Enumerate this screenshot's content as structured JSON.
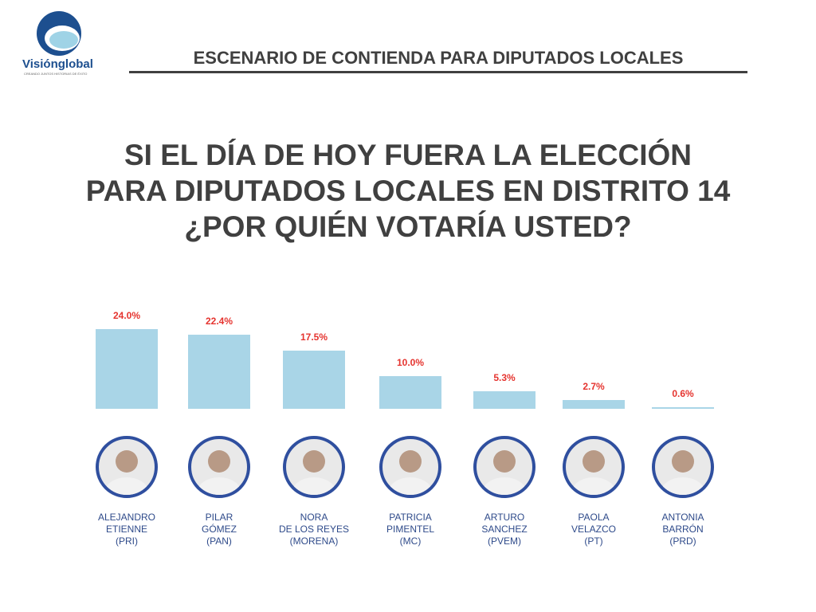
{
  "logo": {
    "name": "Visiónglobal",
    "tagline": "CREANDO JUNTOS HISTORIAS DE ÉXITO"
  },
  "header": "ESCENARIO DE CONTIENDA PARA DIPUTADOS LOCALES",
  "chart_data": {
    "type": "bar",
    "title": "SI EL DÍA DE HOY FUERA LA ELECCIÓN\nPARA DIPUTADOS LOCALES EN DISTRITO 14\n¿POR QUIÉN VOTARÍA USTED?",
    "categories": [
      "ALEJANDRO\nETIENNE\n(PRI)",
      "PILAR\nGÓMEZ\n(PAN)",
      "NORA\nDE LOS REYES\n(MORENA)",
      "PATRICIA\nPIMENTEL\n(MC)",
      "ARTURO\nSANCHEZ\n(PVEM)",
      "PAOLA\nVELAZCO\n(PT)",
      "ANTONIA\nBARRÓN\n(PRD)"
    ],
    "values": [
      24.0,
      22.4,
      17.5,
      10.0,
      5.3,
      2.7,
      0.6
    ],
    "value_labels": [
      "24.0%",
      "22.4%",
      "17.5%",
      "10.0%",
      "5.3%",
      "2.7%",
      "0.6%"
    ],
    "color": "#a9d5e7",
    "label_color": "#e5342f"
  }
}
